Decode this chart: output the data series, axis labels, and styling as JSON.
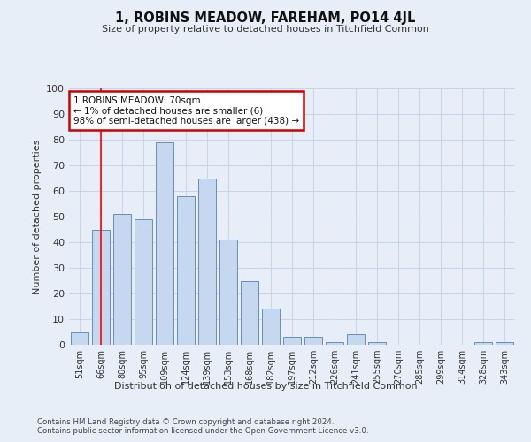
{
  "title": "1, ROBINS MEADOW, FAREHAM, PO14 4JL",
  "subtitle": "Size of property relative to detached houses in Titchfield Common",
  "xlabel": "Distribution of detached houses by size in Titchfield Common",
  "ylabel": "Number of detached properties",
  "categories": [
    "51sqm",
    "66sqm",
    "80sqm",
    "95sqm",
    "109sqm",
    "124sqm",
    "139sqm",
    "153sqm",
    "168sqm",
    "182sqm",
    "197sqm",
    "212sqm",
    "226sqm",
    "241sqm",
    "255sqm",
    "270sqm",
    "285sqm",
    "299sqm",
    "314sqm",
    "328sqm",
    "343sqm"
  ],
  "values": [
    5,
    45,
    51,
    49,
    79,
    58,
    65,
    41,
    25,
    14,
    3,
    3,
    1,
    4,
    1,
    0,
    0,
    0,
    0,
    1,
    1
  ],
  "bar_color": "#c5d8f0",
  "bar_edge_color": "#5580b0",
  "grid_color": "#c8d4e8",
  "background_color": "#e8eef8",
  "red_line_x": 1,
  "annotation_text": "1 ROBINS MEADOW: 70sqm\n← 1% of detached houses are smaller (6)\n98% of semi-detached houses are larger (438) →",
  "annotation_box_color": "#ffffff",
  "annotation_box_edge": "#cc0000",
  "footer1": "Contains HM Land Registry data © Crown copyright and database right 2024.",
  "footer2": "Contains public sector information licensed under the Open Government Licence v3.0.",
  "ylim": [
    0,
    100
  ],
  "yticks": [
    0,
    10,
    20,
    30,
    40,
    50,
    60,
    70,
    80,
    90,
    100
  ]
}
